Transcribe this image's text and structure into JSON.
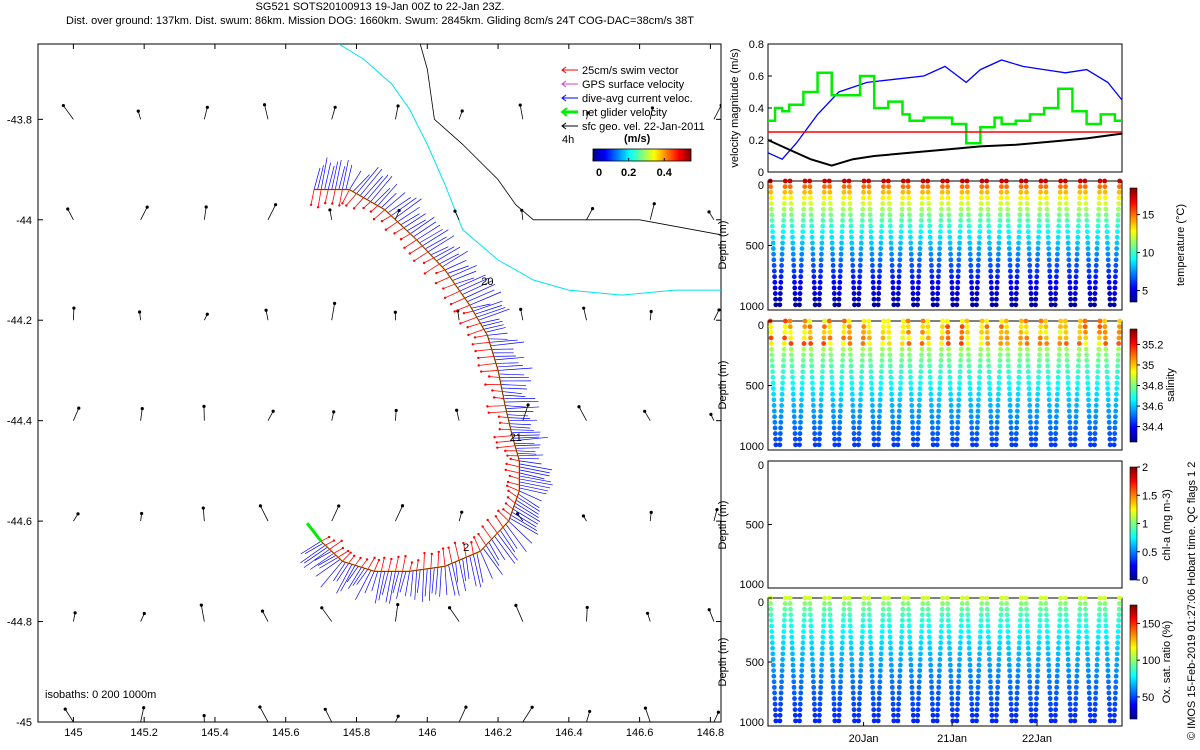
{
  "title": {
    "line1": "SG521 SOTS20100913 19-Jan 00Z to 22-Jan 23Z.",
    "line2": "Dist. over ground: 137km. Dist. swum: 86km. Mission DOG: 1660km. Swum: 2845km. Gliding 8cm/s 24T COG-DAC=38cm/s 38T"
  },
  "credit": "© IMOS 15-Feb-2019 01:27:06 Hobart time. QC flags 1  2",
  "colors": {
    "swim": "#ff0000",
    "gps": "#cc44cc",
    "dac": "#0000ff",
    "net": "#00ee00",
    "geo": "#000000",
    "isobath_200": "#00e5ee",
    "speed_ref": "#ff0000"
  },
  "chart_data": [
    {
      "type": "map",
      "name": "track-map",
      "xlim": [
        144.9,
        146.83
      ],
      "ylim": [
        -45,
        -43.65
      ],
      "xticks": [
        145,
        145.2,
        145.4,
        145.6,
        145.8,
        146,
        146.2,
        146.4,
        146.6,
        146.8
      ],
      "xtick_labels": [
        "145",
        "145.2",
        "145.4",
        "145.6",
        "145.8",
        "146",
        "146.2",
        "146.4",
        "146.6",
        "146.8"
      ],
      "yticks": [
        -43.8,
        -44,
        -44.2,
        -44.4,
        -44.6,
        -44.8,
        -45
      ],
      "ytick_labels": [
        "-43.8",
        "-44",
        "-44.2",
        "-44.4",
        "-44.6",
        "-44.8",
        "-45"
      ],
      "legend": {
        "placement": "top-right",
        "entries": [
          "25cm/s swim vector",
          "GPS surface velocity",
          "dive-avg current veloc.",
          "net glider velocity",
          "sfc geo. vel. 22-Jan-2011"
        ]
      },
      "colorbar": {
        "label": "(m/s)",
        "tick_labels": [
          "0",
          "0.2",
          "0.4"
        ],
        "scale_label": "4h",
        "range": [
          0,
          0.55
        ]
      },
      "isobath_note": "isobaths: 0   200  1000m",
      "day_labels": [
        {
          "text": "20",
          "lon": 146.17,
          "lat": -44.13
        },
        {
          "text": "21",
          "lon": 146.25,
          "lat": -44.44
        },
        {
          "text": "2",
          "lon": 146.11,
          "lat": -44.66
        }
      ],
      "track": [
        [
          145.68,
          -43.94
        ],
        [
          145.78,
          -43.94
        ],
        [
          145.88,
          -43.98
        ],
        [
          145.97,
          -44.04
        ],
        [
          146.05,
          -44.1
        ],
        [
          146.12,
          -44.17
        ],
        [
          146.17,
          -44.23
        ],
        [
          146.2,
          -44.3
        ],
        [
          146.22,
          -44.37
        ],
        [
          146.24,
          -44.43
        ],
        [
          146.26,
          -44.48
        ],
        [
          146.26,
          -44.54
        ],
        [
          146.23,
          -44.6
        ],
        [
          146.15,
          -44.66
        ],
        [
          146.05,
          -44.69
        ],
        [
          145.95,
          -44.7
        ],
        [
          145.85,
          -44.7
        ],
        [
          145.76,
          -44.68
        ],
        [
          145.7,
          -44.64
        ]
      ],
      "isobath_0": [
        [
          145.6,
          -43.65
        ],
        [
          145.98,
          -43.65
        ],
        [
          146.0,
          -43.7
        ],
        [
          146.02,
          -43.8
        ],
        [
          146.1,
          -43.85
        ],
        [
          146.2,
          -43.92
        ],
        [
          146.25,
          -43.97
        ],
        [
          146.3,
          -44.0
        ],
        [
          146.45,
          -44.0
        ],
        [
          146.6,
          -44.0
        ],
        [
          146.83,
          -44.03
        ]
      ],
      "isobath_200": [
        [
          145.75,
          -43.65
        ],
        [
          145.82,
          -43.68
        ],
        [
          145.9,
          -43.73
        ],
        [
          145.95,
          -43.78
        ],
        [
          146.0,
          -43.85
        ],
        [
          146.05,
          -43.93
        ],
        [
          146.1,
          -44.02
        ],
        [
          146.2,
          -44.08
        ],
        [
          146.3,
          -44.12
        ],
        [
          146.4,
          -44.14
        ],
        [
          146.55,
          -44.15
        ],
        [
          146.7,
          -44.14
        ],
        [
          146.83,
          -44.14
        ]
      ],
      "geo_grid": {
        "lons": [
          145.0,
          145.19,
          145.37,
          145.55,
          145.73,
          145.91,
          146.09,
          146.27,
          146.45,
          146.63,
          146.81
        ],
        "lats": [
          -43.8,
          -44.0,
          -44.2,
          -44.4,
          -44.6,
          -44.8,
          -45.0
        ]
      }
    },
    {
      "type": "line",
      "name": "velocity-magnitude",
      "ylabel": "velocity magnitude (m/s)",
      "ylim": [
        0,
        0.8
      ],
      "yticks": [
        0,
        0.2,
        0.4,
        0.6,
        0.8
      ],
      "ytick_labels": [
        "0",
        "0.2",
        "0.4",
        "0.6",
        "0.8"
      ],
      "xlim": [
        0,
        1
      ],
      "series": [
        {
          "role": "dac",
          "x": [
            0,
            0.04,
            0.08,
            0.14,
            0.2,
            0.28,
            0.36,
            0.44,
            0.5,
            0.56,
            0.6,
            0.66,
            0.72,
            0.78,
            0.84,
            0.9,
            0.96,
            1.0
          ],
          "y": [
            0.12,
            0.08,
            0.18,
            0.36,
            0.5,
            0.56,
            0.58,
            0.6,
            0.66,
            0.56,
            0.64,
            0.7,
            0.66,
            0.64,
            0.62,
            0.64,
            0.56,
            0.45
          ]
        },
        {
          "role": "net",
          "x": [
            0,
            0.02,
            0.04,
            0.06,
            0.1,
            0.14,
            0.18,
            0.22,
            0.26,
            0.3,
            0.34,
            0.38,
            0.4,
            0.44,
            0.48,
            0.52,
            0.56,
            0.6,
            0.64,
            0.66,
            0.7,
            0.74,
            0.78,
            0.82,
            0.86,
            0.9,
            0.94,
            0.98,
            1.0
          ],
          "y": [
            0.32,
            0.4,
            0.38,
            0.42,
            0.5,
            0.62,
            0.48,
            0.48,
            0.6,
            0.4,
            0.44,
            0.36,
            0.32,
            0.34,
            0.34,
            0.3,
            0.18,
            0.28,
            0.34,
            0.3,
            0.32,
            0.36,
            0.4,
            0.52,
            0.38,
            0.3,
            0.36,
            0.32,
            0.32
          ]
        },
        {
          "role": "ref",
          "x": [
            0,
            1.0
          ],
          "y": [
            0.25,
            0.25
          ]
        },
        {
          "role": "cog",
          "x": [
            0,
            0.06,
            0.12,
            0.18,
            0.24,
            0.3,
            0.4,
            0.5,
            0.6,
            0.7,
            0.8,
            0.9,
            1.0
          ],
          "y": [
            0.2,
            0.14,
            0.08,
            0.04,
            0.08,
            0.1,
            0.12,
            0.14,
            0.16,
            0.17,
            0.19,
            0.21,
            0.24
          ]
        }
      ]
    },
    {
      "type": "scatter",
      "name": "temperature-section",
      "ylabel": "Depth (m)",
      "yticks": [
        0,
        500,
        1000
      ],
      "ytick_labels": [
        "0",
        "500",
        "1000"
      ],
      "ylim": [
        0,
        1000
      ],
      "n_profiles": 18,
      "colorbar": {
        "label": "temperature (°C)",
        "range": [
          3.5,
          18.5
        ],
        "tick_values": [
          5,
          10,
          15
        ],
        "tick_labels": [
          "5",
          "10",
          "15"
        ]
      },
      "surface_value": 17.5,
      "deep_value": 4.0
    },
    {
      "type": "scatter",
      "name": "salinity-section",
      "ylabel": "Depth (m)",
      "yticks": [
        0,
        500,
        1000
      ],
      "ytick_labels": [
        "0",
        "500",
        "1000"
      ],
      "ylim": [
        0,
        1000
      ],
      "n_profiles": 18,
      "colorbar": {
        "label": "salinity",
        "range": [
          34.25,
          35.35
        ],
        "tick_values": [
          34.4,
          34.6,
          34.8,
          35,
          35.2
        ],
        "tick_labels": [
          "34.4",
          "34.6",
          "34.8",
          "35",
          "35.2"
        ]
      },
      "surface_value": 35.15,
      "deep_value": 34.45
    },
    {
      "type": "scatter",
      "name": "chla-section",
      "ylabel": "Depth (m)",
      "yticks": [
        0,
        500,
        1000
      ],
      "ytick_labels": [
        "0",
        "500",
        "1000"
      ],
      "ylim": [
        0,
        1000
      ],
      "colorbar": {
        "label": "chl-a (mg m-3)",
        "range": [
          0,
          2
        ],
        "tick_values": [
          0,
          0.5,
          1,
          1.5,
          2
        ],
        "tick_labels": [
          "0",
          "0.5",
          "1",
          "1.5",
          "2"
        ]
      }
    },
    {
      "type": "scatter",
      "name": "oxygen-section",
      "ylabel": "Depth (m)",
      "yticks": [
        0,
        500,
        1000
      ],
      "ytick_labels": [
        "0",
        "500",
        "1000"
      ],
      "ylim": [
        0,
        1000
      ],
      "n_profiles": 18,
      "xtick_labels": [
        "20Jan",
        "21Jan",
        "22Jan"
      ],
      "xtick_positions": [
        0.27,
        0.52,
        0.76
      ],
      "colorbar": {
        "label": "Ox. sat. ratio (%)",
        "range": [
          20,
          175
        ],
        "tick_values": [
          50,
          100,
          150
        ],
        "tick_labels": [
          "50",
          "100",
          "150"
        ]
      },
      "surface_value": 110,
      "deep_value": 45
    }
  ]
}
